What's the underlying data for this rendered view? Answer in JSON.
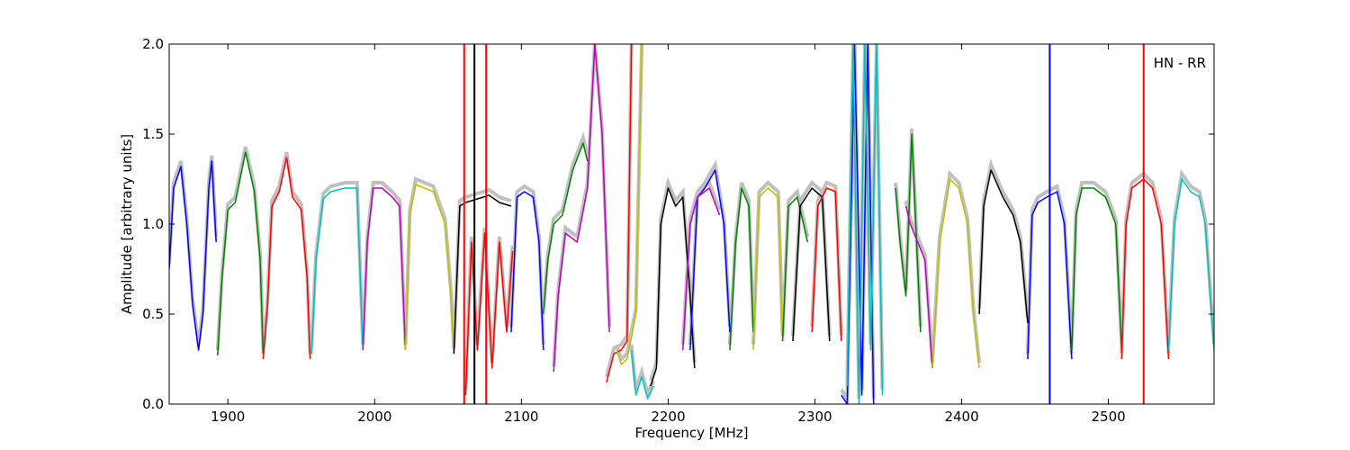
{
  "chart_data": {
    "type": "line",
    "xlabel": "Frequency [MHz]",
    "ylabel": "Amplitude [arbitrary units]",
    "annotation": "HN - RR",
    "xlim": [
      1860,
      2572
    ],
    "ylim": [
      0.0,
      2.0
    ],
    "xticks": [
      1900,
      2000,
      2100,
      2200,
      2300,
      2400,
      2500
    ],
    "xtick_labels": [
      "1900",
      "2000",
      "2100",
      "2200",
      "2300",
      "2400",
      "2500"
    ],
    "yticks": [
      0.0,
      0.5,
      1.0,
      1.5,
      2.0
    ],
    "ytick_labels": [
      "0.0",
      "0.5",
      "1.0",
      "1.5",
      "2.0"
    ],
    "grid": false,
    "background_color": "#c0c0c0",
    "series": [
      {
        "color": "#0000ff",
        "x": [
          1860,
          1863,
          1868,
          1872,
          1876,
          1880,
          1883,
          1887,
          1889,
          1892
        ],
        "y": [
          0.75,
          1.2,
          1.32,
          1.0,
          0.55,
          0.3,
          0.5,
          1.2,
          1.35,
          0.9
        ]
      },
      {
        "color": "#008000",
        "x": [
          1893,
          1896,
          1900,
          1905,
          1912,
          1918,
          1922,
          1924
        ],
        "y": [
          0.27,
          0.7,
          1.08,
          1.12,
          1.4,
          1.18,
          0.8,
          0.28
        ]
      },
      {
        "color": "#ff0000",
        "x": [
          1924,
          1927,
          1930,
          1935,
          1940,
          1944,
          1950,
          1954,
          1956
        ],
        "y": [
          0.25,
          0.55,
          1.1,
          1.18,
          1.37,
          1.15,
          1.08,
          0.7,
          0.25
        ]
      },
      {
        "color": "#00bfbf",
        "x": [
          1957,
          1960,
          1965,
          1970,
          1980,
          1988,
          1992
        ],
        "y": [
          0.28,
          0.8,
          1.14,
          1.18,
          1.2,
          1.2,
          0.3
        ]
      },
      {
        "color": "#bf00bf",
        "x": [
          1992,
          1995,
          1999,
          2005,
          2012,
          2017,
          2021
        ],
        "y": [
          0.3,
          0.9,
          1.2,
          1.2,
          1.15,
          1.1,
          0.3
        ]
      },
      {
        "color": "#bfbf00",
        "x": [
          2021,
          2024,
          2028,
          2040,
          2048,
          2052,
          2054
        ],
        "y": [
          0.3,
          1.05,
          1.22,
          1.18,
          1.0,
          0.6,
          0.28
        ]
      },
      {
        "color": "#000000",
        "x": [
          2054,
          2058,
          2062,
          2070,
          2078,
          2085,
          2093
        ],
        "y": [
          0.28,
          1.1,
          1.12,
          1.14,
          1.16,
          1.12,
          1.1
        ]
      },
      {
        "color": "#ff0000",
        "x": [
          2062,
          2066,
          2070,
          2075,
          2080,
          2085,
          2090,
          2094
        ],
        "y": [
          0.05,
          0.9,
          0.3,
          0.95,
          0.2,
          0.9,
          0.4,
          0.85
        ]
      },
      {
        "color": "#0000ff",
        "x": [
          2093,
          2097,
          2102,
          2108,
          2112,
          2115
        ],
        "y": [
          0.4,
          1.15,
          1.18,
          1.15,
          0.9,
          0.3
        ]
      },
      {
        "color": "#008000",
        "x": [
          2115,
          2118,
          2122,
          2128,
          2135,
          2142,
          2145
        ],
        "y": [
          0.5,
          0.8,
          1.0,
          1.05,
          1.3,
          1.45,
          1.35
        ]
      },
      {
        "color": "#bf00bf",
        "x": [
          2122,
          2125,
          2130,
          2138,
          2145,
          2150,
          2155,
          2160
        ],
        "y": [
          0.18,
          0.6,
          0.95,
          0.9,
          1.2,
          2.0,
          1.5,
          0.4
        ]
      },
      {
        "color": "#ff0000",
        "x": [
          2158,
          2163,
          2168,
          2172,
          2175
        ],
        "y": [
          0.12,
          0.28,
          0.3,
          0.35,
          2.0
        ]
      },
      {
        "color": "#bfbf00",
        "x": [
          2165,
          2168,
          2172,
          2178,
          2182
        ],
        "y": [
          0.3,
          0.22,
          0.25,
          0.5,
          2.0
        ]
      },
      {
        "color": "#00bfbf",
        "x": [
          2175,
          2178,
          2182,
          2186,
          2190
        ],
        "y": [
          0.3,
          0.05,
          0.15,
          0.03,
          0.1
        ]
      },
      {
        "color": "#000000",
        "x": [
          2188,
          2192,
          2195,
          2200,
          2205,
          2210,
          2215,
          2218
        ],
        "y": [
          0.1,
          0.2,
          1.0,
          1.2,
          1.1,
          1.15,
          0.6,
          0.2
        ]
      },
      {
        "color": "#0000ff",
        "x": [
          2215,
          2220,
          2225,
          2232,
          2238,
          2242
        ],
        "y": [
          0.3,
          1.15,
          1.2,
          1.3,
          1.0,
          0.4
        ]
      },
      {
        "color": "#bf00bf",
        "x": [
          2210,
          2215,
          2220,
          2228,
          2235
        ],
        "y": [
          0.3,
          1.0,
          1.15,
          1.2,
          1.05
        ]
      },
      {
        "color": "#008000",
        "x": [
          2242,
          2246,
          2250,
          2255,
          2258
        ],
        "y": [
          0.3,
          0.9,
          1.2,
          1.1,
          0.4
        ]
      },
      {
        "color": "#bfbf00",
        "x": [
          2258,
          2262,
          2268,
          2275,
          2278
        ],
        "y": [
          0.3,
          1.15,
          1.2,
          1.15,
          0.35
        ]
      },
      {
        "color": "#008000",
        "x": [
          2278,
          2282,
          2288,
          2295
        ],
        "y": [
          0.35,
          1.1,
          1.15,
          0.9
        ]
      },
      {
        "color": "#000000",
        "x": [
          2285,
          2290,
          2298,
          2305,
          2310
        ],
        "y": [
          0.35,
          1.1,
          1.2,
          1.15,
          0.35
        ]
      },
      {
        "color": "#ff0000",
        "x": [
          2298,
          2302,
          2308,
          2314,
          2318
        ],
        "y": [
          0.4,
          1.1,
          1.2,
          1.18,
          0.35
        ]
      },
      {
        "color": "#0000ff",
        "x": [
          2318,
          2322,
          2327,
          2332,
          2336,
          2340
        ],
        "y": [
          0.05,
          0.0,
          2.0,
          0.05,
          2.0,
          0.0
        ]
      },
      {
        "color": "#00bfbf",
        "x": [
          2322,
          2326,
          2330,
          2334,
          2338,
          2342,
          2346
        ],
        "y": [
          0.1,
          2.0,
          0.0,
          2.0,
          0.3,
          2.0,
          0.05
        ]
      },
      {
        "color": "#008000",
        "x": [
          2355,
          2358,
          2362,
          2366,
          2372
        ],
        "y": [
          1.2,
          0.9,
          0.6,
          1.5,
          0.4
        ]
      },
      {
        "color": "#bf00bf",
        "x": [
          2362,
          2365,
          2370,
          2375,
          2380
        ],
        "y": [
          1.1,
          1.0,
          0.9,
          0.8,
          0.2
        ]
      },
      {
        "color": "#bfbf00",
        "x": [
          2380,
          2385,
          2392,
          2398,
          2404,
          2408,
          2412
        ],
        "y": [
          0.2,
          0.9,
          1.25,
          1.2,
          1.0,
          0.5,
          0.2
        ]
      },
      {
        "color": "#000000",
        "x": [
          2412,
          2415,
          2420,
          2428,
          2435,
          2440,
          2445
        ],
        "y": [
          0.5,
          1.1,
          1.3,
          1.15,
          1.05,
          0.9,
          0.45
        ]
      },
      {
        "color": "#0000ff",
        "x": [
          2445,
          2448,
          2452,
          2458,
          2465,
          2470,
          2475
        ],
        "y": [
          0.25,
          1.05,
          1.12,
          1.15,
          1.18,
          1.0,
          0.25
        ]
      },
      {
        "color": "#008000",
        "x": [
          2475,
          2478,
          2482,
          2490,
          2498,
          2505,
          2509
        ],
        "y": [
          0.3,
          1.05,
          1.2,
          1.2,
          1.15,
          1.0,
          0.3
        ]
      },
      {
        "color": "#ff0000",
        "x": [
          2509,
          2512,
          2516,
          2524,
          2530,
          2536,
          2541
        ],
        "y": [
          0.25,
          1.0,
          1.2,
          1.25,
          1.2,
          1.0,
          0.25
        ]
      },
      {
        "color": "#00bfbf",
        "x": [
          2541,
          2545,
          2550,
          2556,
          2562,
          2566,
          2572
        ],
        "y": [
          0.3,
          1.0,
          1.25,
          1.18,
          1.15,
          1.0,
          0.3
        ]
      }
    ],
    "spikes": [
      {
        "color": "#ff0000",
        "x": 2061,
        "y": 2.0
      },
      {
        "color": "#000000",
        "x": 2068,
        "y": 2.0
      },
      {
        "color": "#ff0000",
        "x": 2076,
        "y": 2.0
      },
      {
        "color": "#0000ff",
        "x": 2460,
        "y": 2.0
      },
      {
        "color": "#ff0000",
        "x": 2524,
        "y": 2.0
      }
    ]
  }
}
